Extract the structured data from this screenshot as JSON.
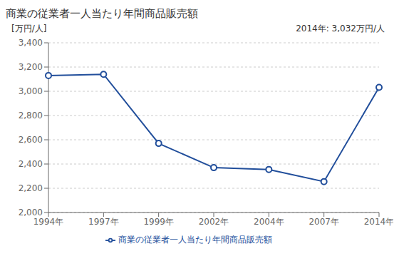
{
  "chart_data": {
    "type": "line",
    "title": "商業の従業者一人当たり年間商品販売額",
    "ylabel": "[万円/人]",
    "annotations": [
      "2014年: 3,032万円/人"
    ],
    "categories": [
      "1994年",
      "1997年",
      "1999年",
      "2002年",
      "2004年",
      "2007年",
      "2014年"
    ],
    "series": [
      {
        "name": "商業の従業者一人当たり年間商品販売額",
        "color": "#214e9b",
        "values": [
          3130,
          3140,
          2570,
          2370,
          2355,
          2255,
          3032
        ],
        "marker": "circle",
        "line_style": "solid"
      }
    ],
    "ylim": [
      2000,
      3400
    ],
    "yticks": [
      {
        "value": 2000,
        "label": "2,000"
      },
      {
        "value": 2200,
        "label": "2,200"
      },
      {
        "value": 2400,
        "label": "2,400"
      },
      {
        "value": 2600,
        "label": "2,600"
      },
      {
        "value": 2800,
        "label": "2,800"
      },
      {
        "value": 3000,
        "label": "3,000"
      },
      {
        "value": 3200,
        "label": "3,200"
      },
      {
        "value": 3400,
        "label": "3,400"
      }
    ],
    "grid": true,
    "legend": "bottom"
  }
}
